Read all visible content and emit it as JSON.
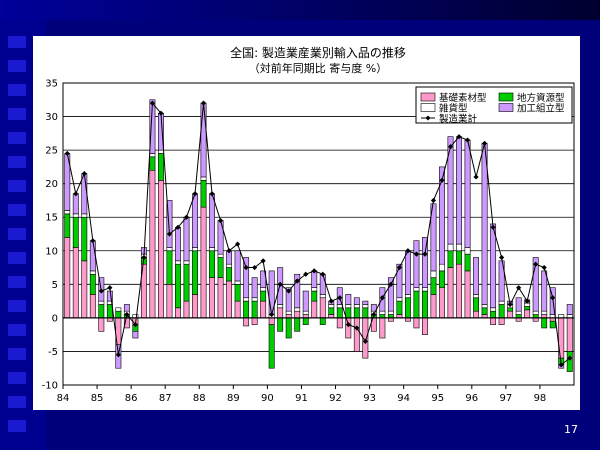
{
  "page_number": "17",
  "chart_data": {
    "type": "bar",
    "title": "全国: 製造業産業別輸入品の推移",
    "subtitle": "（対前年同期比 寄与度 %）",
    "xlabel": "",
    "ylabel": "",
    "ylim": [
      -10,
      35
    ],
    "yticks": [
      -10,
      -5,
      0,
      5,
      10,
      15,
      20,
      25,
      30,
      35
    ],
    "x_tick_labels": [
      "84",
      "85",
      "86",
      "87",
      "88",
      "89",
      "90",
      "91",
      "92",
      "93",
      "94",
      "95",
      "96",
      "97",
      "98"
    ],
    "grid": true,
    "legend_position": "top-right",
    "colors": {
      "basic_material": "#ff99cc",
      "local_resource": "#00cc00",
      "misc": "#ffffff",
      "processing": "#cc99ff",
      "total_line": "#000000"
    },
    "legend": [
      {
        "key": "basic_material",
        "label": "基礎素材型"
      },
      {
        "key": "local_resource",
        "label": "地方資源型"
      },
      {
        "key": "misc",
        "label": "雑貨型"
      },
      {
        "key": "processing",
        "label": "加工組立型"
      },
      {
        "key": "total",
        "label": "製造業計"
      }
    ],
    "quarters": [
      "84Q1",
      "84Q2",
      "84Q3",
      "84Q4",
      "85Q1",
      "85Q2",
      "85Q3",
      "85Q4",
      "86Q1",
      "86Q2",
      "86Q3",
      "86Q4",
      "87Q1",
      "87Q2",
      "87Q3",
      "87Q4",
      "88Q1",
      "88Q2",
      "88Q3",
      "88Q4",
      "89Q1",
      "89Q2",
      "89Q3",
      "89Q4",
      "90Q1",
      "90Q2",
      "90Q3",
      "90Q4",
      "91Q1",
      "91Q2",
      "91Q3",
      "91Q4",
      "92Q1",
      "92Q2",
      "92Q3",
      "92Q4",
      "93Q1",
      "93Q2",
      "93Q3",
      "93Q4",
      "94Q1",
      "94Q2",
      "94Q3",
      "94Q4",
      "95Q1",
      "95Q2",
      "95Q3",
      "95Q4",
      "96Q1",
      "96Q2",
      "96Q3",
      "96Q4",
      "97Q1",
      "97Q2",
      "97Q3",
      "97Q4",
      "98Q1",
      "98Q2",
      "98Q3",
      "98Q4"
    ],
    "series": [
      {
        "key": "basic_material",
        "name": "基礎素材型",
        "values": [
          12,
          10.5,
          8.5,
          3.5,
          -2,
          -0.5,
          -4,
          -1.5,
          -1,
          8,
          22,
          20.5,
          5,
          1.5,
          2.5,
          3.5,
          16.5,
          6,
          6,
          5.5,
          2.5,
          -1.2,
          -1,
          2.5,
          -1,
          1.5,
          0.5,
          1,
          0.5,
          2.5,
          3,
          0.5,
          -1.5,
          -3,
          -5,
          -6,
          -2,
          -3,
          -0.5,
          0.5,
          -0.5,
          -1.5,
          -2.5,
          3.5,
          4.5,
          7.5,
          8,
          7,
          1,
          0.5,
          -1,
          -1,
          1,
          -0.5,
          1.2,
          -0.5,
          0.5,
          -0.5,
          -6,
          -5
        ]
      },
      {
        "key": "local_resource",
        "name": "地方資源型",
        "values": [
          3.5,
          4.5,
          6.5,
          3,
          2,
          2,
          1,
          0.5,
          -1,
          1,
          2,
          4,
          5,
          6.5,
          5.5,
          6.5,
          4,
          4,
          3,
          2,
          2.5,
          2.5,
          2.5,
          1.5,
          -6.5,
          -2,
          -3,
          -2,
          -1,
          1.5,
          -1,
          1,
          1.5,
          1.5,
          1.5,
          1.5,
          0.5,
          0.5,
          0.5,
          2,
          3,
          4,
          4,
          2.5,
          2.5,
          2.5,
          2,
          2.5,
          2,
          1,
          1,
          2,
          0.5,
          0.5,
          0.5,
          0.5,
          -1.5,
          -1,
          -1,
          -3
        ]
      },
      {
        "key": "misc",
        "name": "雑貨型",
        "values": [
          0.5,
          0.5,
          0.5,
          0.5,
          0.5,
          0.5,
          0.5,
          0.5,
          0.5,
          0.5,
          0.5,
          0.5,
          0.5,
          0.5,
          0.5,
          0.5,
          0.5,
          0.5,
          0.5,
          0.5,
          0.5,
          0.5,
          0.5,
          0.5,
          0.5,
          0.5,
          0.5,
          0.5,
          0.5,
          0.5,
          0.5,
          0.5,
          0.5,
          0.5,
          0.5,
          0.5,
          0.5,
          0.5,
          0.5,
          0.5,
          0.5,
          0.5,
          0.5,
          1,
          1,
          1,
          1,
          1,
          0.5,
          0.5,
          0.5,
          0.5,
          0.5,
          0.5,
          0.5,
          0.5,
          0.5,
          0.5,
          0.5,
          0.5
        ]
      },
      {
        "key": "processing",
        "name": "加工組立型",
        "values": [
          8.5,
          3,
          6,
          4.5,
          3.5,
          1.5,
          -3.5,
          1,
          -1,
          1,
          8,
          5.5,
          7,
          5,
          6.5,
          8,
          11,
          8,
          5,
          2,
          4.5,
          6,
          3,
          2.5,
          6.5,
          5.5,
          3.5,
          5,
          3,
          2.5,
          3,
          0.5,
          2.5,
          1.5,
          1,
          0.5,
          1,
          3.5,
          5,
          5,
          6.5,
          7,
          7.5,
          10,
          14.5,
          16,
          16,
          16,
          5.5,
          24,
          12.5,
          6,
          0.5,
          2,
          0.5,
          8,
          6,
          4,
          -0.5,
          1.5
        ]
      },
      {
        "key": "total",
        "name": "製造業計",
        "values": [
          24.5,
          18.5,
          21.5,
          11.5,
          4,
          4.5,
          -5.5,
          0.5,
          -1,
          9,
          32,
          30.5,
          12.5,
          13.5,
          15,
          18.5,
          32,
          18.5,
          14.5,
          10,
          11,
          7.5,
          7.5,
          8.5,
          0.5,
          5,
          4,
          5.5,
          6.5,
          7,
          6.5,
          2.5,
          3,
          -1,
          -1.5,
          -3.5,
          0.5,
          3,
          5,
          7.5,
          10,
          9.5,
          9.5,
          17.5,
          20.5,
          25.5,
          27,
          26.5,
          21,
          26,
          13.5,
          9,
          2,
          4.5,
          2.5,
          8,
          7.5,
          3,
          -7,
          -6
        ]
      }
    ]
  }
}
